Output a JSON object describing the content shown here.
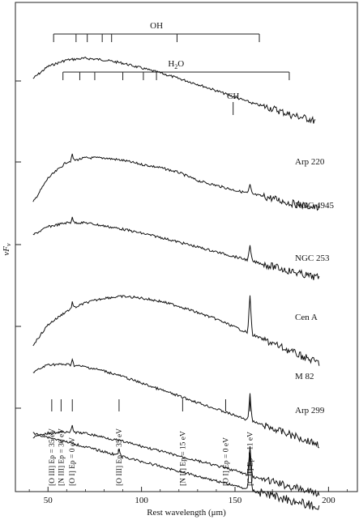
{
  "chart_data": {
    "type": "line",
    "xlabel": "Rest wavelength (μm)",
    "ylabel": "νFν",
    "xlim": [
      33,
      215
    ],
    "x_ticks": [
      50,
      100,
      150,
      200
    ],
    "log_y": true,
    "grid": false,
    "series": [
      {
        "name": "",
        "offset": 0,
        "bump": 70,
        "slope": 0.55,
        "peak": 0,
        "points": [
          [
            42,
            0.75
          ],
          [
            50,
            0.9
          ],
          [
            60,
            0.98
          ],
          [
            70,
            1.0
          ],
          [
            80,
            0.98
          ],
          [
            90,
            0.94
          ],
          [
            100,
            0.88
          ],
          [
            110,
            0.82
          ],
          [
            120,
            0.75
          ],
          [
            130,
            0.68
          ],
          [
            140,
            0.6
          ],
          [
            150,
            0.52
          ],
          [
            160,
            0.44
          ],
          [
            170,
            0.38
          ],
          [
            180,
            0.3
          ],
          [
            190,
            0.25
          ],
          [
            193,
            0.22
          ]
        ]
      },
      {
        "name": "Arp 220",
        "offset": 1,
        "bump": 80,
        "peak": 0.35,
        "points": [
          [
            42,
            0.25
          ],
          [
            50,
            0.55
          ],
          [
            60,
            0.75
          ],
          [
            70,
            0.8
          ],
          [
            80,
            0.8
          ],
          [
            90,
            0.77
          ],
          [
            100,
            0.72
          ],
          [
            110,
            0.68
          ],
          [
            120,
            0.62
          ],
          [
            130,
            0.52
          ],
          [
            140,
            0.46
          ],
          [
            150,
            0.4
          ],
          [
            160,
            0.35
          ],
          [
            170,
            0.3
          ],
          [
            180,
            0.24
          ],
          [
            190,
            0.2
          ],
          [
            195,
            0.18
          ]
        ]
      },
      {
        "name": "NGC 4945",
        "offset": 2,
        "bump": 65,
        "peak": 0.6,
        "points": [
          [
            42,
            0.75
          ],
          [
            50,
            0.85
          ],
          [
            60,
            0.9
          ],
          [
            70,
            0.9
          ],
          [
            80,
            0.86
          ],
          [
            90,
            0.82
          ],
          [
            100,
            0.77
          ],
          [
            110,
            0.72
          ],
          [
            120,
            0.66
          ],
          [
            130,
            0.6
          ],
          [
            140,
            0.54
          ],
          [
            150,
            0.48
          ],
          [
            160,
            0.42
          ],
          [
            170,
            0.36
          ],
          [
            180,
            0.3
          ],
          [
            190,
            0.24
          ],
          [
            195,
            0.22
          ]
        ]
      },
      {
        "name": "NGC 253",
        "offset": 3,
        "bump": 95,
        "peak": 1.6,
        "points": [
          [
            42,
            0.3
          ],
          [
            50,
            0.55
          ],
          [
            60,
            0.72
          ],
          [
            70,
            0.82
          ],
          [
            80,
            0.88
          ],
          [
            90,
            0.9
          ],
          [
            100,
            0.88
          ],
          [
            110,
            0.84
          ],
          [
            120,
            0.78
          ],
          [
            130,
            0.7
          ],
          [
            140,
            0.62
          ],
          [
            150,
            0.52
          ],
          [
            160,
            0.42
          ],
          [
            170,
            0.32
          ],
          [
            180,
            0.22
          ],
          [
            190,
            0.12
          ],
          [
            195,
            0.08
          ]
        ]
      },
      {
        "name": "Cen A",
        "offset": 4,
        "bump": 55,
        "peak": 1.1,
        "points": [
          [
            42,
            0.85
          ],
          [
            50,
            0.95
          ],
          [
            60,
            0.95
          ],
          [
            70,
            0.92
          ],
          [
            80,
            0.87
          ],
          [
            90,
            0.8
          ],
          [
            100,
            0.72
          ],
          [
            110,
            0.64
          ],
          [
            120,
            0.56
          ],
          [
            130,
            0.48
          ],
          [
            140,
            0.4
          ],
          [
            150,
            0.32
          ],
          [
            160,
            0.24
          ],
          [
            170,
            0.16
          ],
          [
            180,
            0.08
          ],
          [
            190,
            0.0
          ],
          [
            195,
            -0.04
          ]
        ]
      },
      {
        "name": "M 82",
        "offset": 5,
        "bump": 60,
        "peak": 1.2,
        "points": [
          [
            42,
            0.85
          ],
          [
            50,
            0.9
          ],
          [
            60,
            0.92
          ],
          [
            70,
            0.9
          ],
          [
            80,
            0.85
          ],
          [
            90,
            0.8
          ],
          [
            100,
            0.74
          ],
          [
            110,
            0.68
          ],
          [
            120,
            0.62
          ],
          [
            130,
            0.56
          ],
          [
            140,
            0.5
          ],
          [
            150,
            0.44
          ],
          [
            160,
            0.36
          ],
          [
            170,
            0.3
          ],
          [
            180,
            0.24
          ],
          [
            190,
            0.18
          ],
          [
            195,
            0.16
          ]
        ]
      }
    ],
    "series_labels": [
      "Arp 220",
      "NGC 4945",
      "NGC 253",
      "Cen A",
      "M 82",
      "Arp 299"
    ],
    "molecules": [
      {
        "label": "OH",
        "lines": [
          53,
          65,
          71,
          79,
          84,
          119,
          163
        ]
      },
      {
        "label": "H2O",
        "lines": [
          58,
          67,
          75,
          90,
          101,
          108,
          179
        ]
      },
      {
        "label": "CH",
        "lines": [
          149
        ]
      }
    ],
    "fine_structure_lines": [
      {
        "x": 52,
        "label": "[O III] Ep = 35 eV"
      },
      {
        "x": 57,
        "label": "[N III] Ep = 30 eV"
      },
      {
        "x": 63,
        "label": "[O I] Ep = 0 eV"
      },
      {
        "x": 88,
        "label": "[O III] Ep = 35 eV"
      },
      {
        "x": 122,
        "label": "[N II] Ep = 15 eV"
      },
      {
        "x": 145,
        "label": "[O I] Ep = 0 eV"
      },
      {
        "x": 158,
        "label": "[C II] Ep = 11 eV"
      }
    ]
  }
}
